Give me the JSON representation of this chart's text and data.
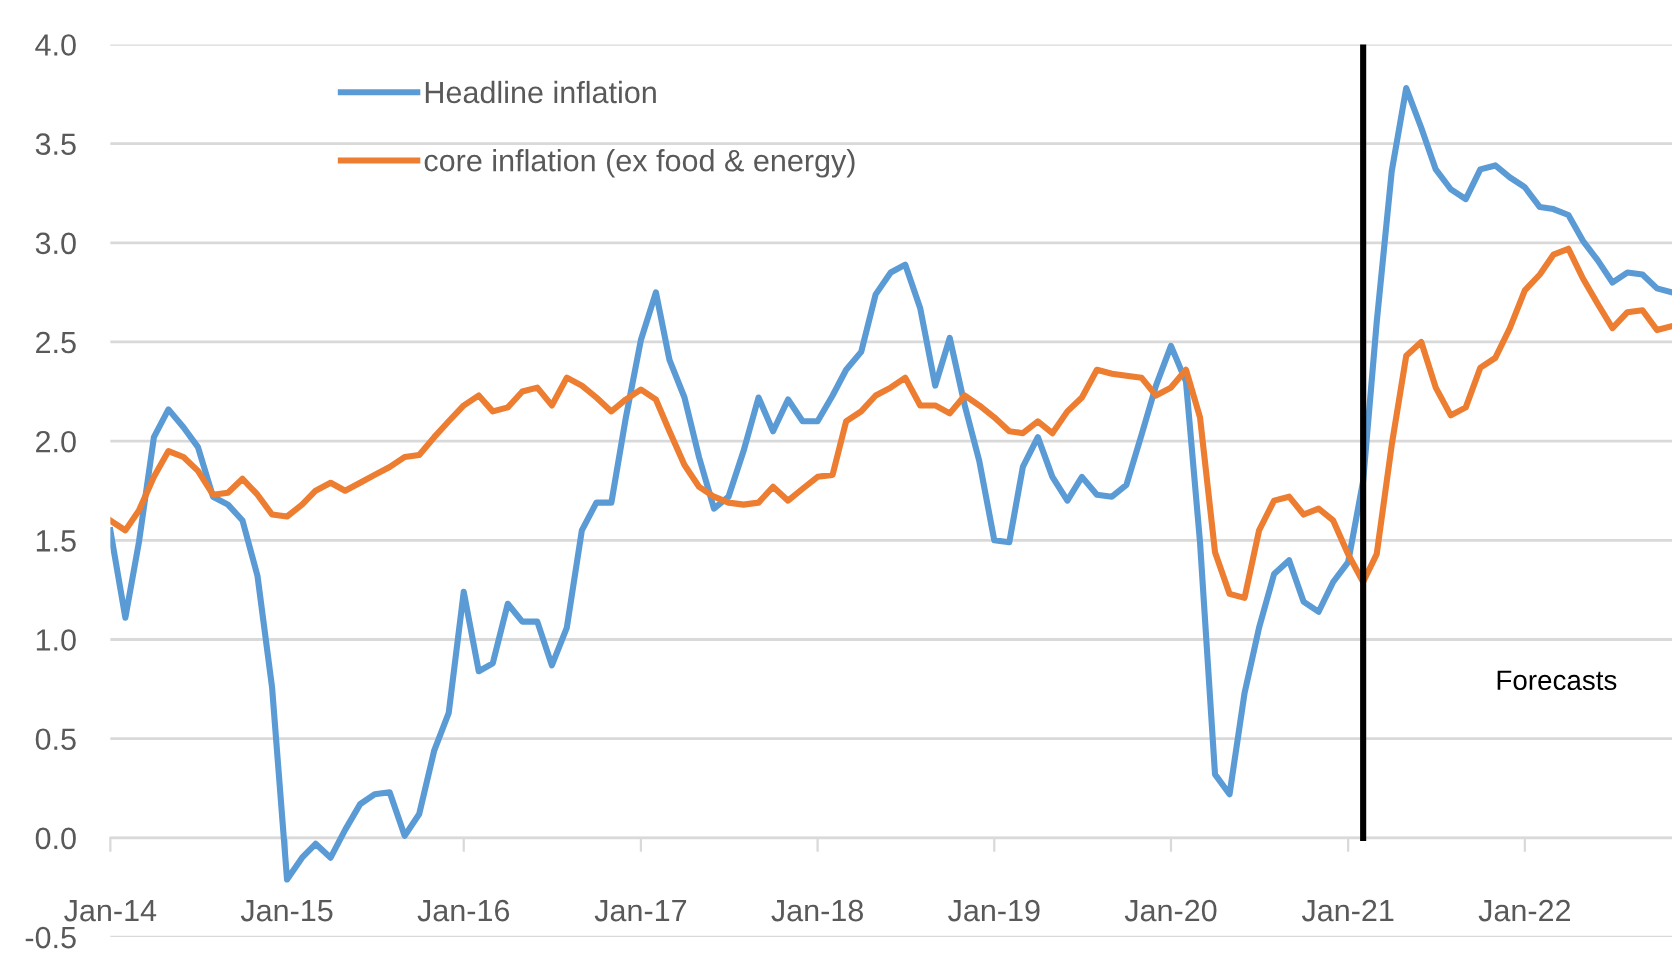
{
  "chart_data": {
    "type": "line",
    "x": [
      "2014-01",
      "2014-02",
      "2014-03",
      "2014-04",
      "2014-05",
      "2014-06",
      "2014-07",
      "2014-08",
      "2014-09",
      "2014-10",
      "2014-11",
      "2014-12",
      "2015-01",
      "2015-02",
      "2015-03",
      "2015-04",
      "2015-05",
      "2015-06",
      "2015-07",
      "2015-08",
      "2015-09",
      "2015-10",
      "2015-11",
      "2015-12",
      "2016-01",
      "2016-02",
      "2016-03",
      "2016-04",
      "2016-05",
      "2016-06",
      "2016-07",
      "2016-08",
      "2016-09",
      "2016-10",
      "2016-11",
      "2016-12",
      "2017-01",
      "2017-02",
      "2017-03",
      "2017-04",
      "2017-05",
      "2017-06",
      "2017-07",
      "2017-08",
      "2017-09",
      "2017-10",
      "2017-11",
      "2017-12",
      "2018-01",
      "2018-02",
      "2018-03",
      "2018-04",
      "2018-05",
      "2018-06",
      "2018-07",
      "2018-08",
      "2018-09",
      "2018-10",
      "2018-11",
      "2018-12",
      "2019-01",
      "2019-02",
      "2019-03",
      "2019-04",
      "2019-05",
      "2019-06",
      "2019-07",
      "2019-08",
      "2019-09",
      "2019-10",
      "2019-11",
      "2019-12",
      "2020-01",
      "2020-02",
      "2020-03",
      "2020-04",
      "2020-05",
      "2020-06",
      "2020-07",
      "2020-08",
      "2020-09",
      "2020-10",
      "2020-11",
      "2020-12",
      "2021-01",
      "2021-02",
      "2021-03",
      "2021-04",
      "2021-05",
      "2021-06",
      "2021-07",
      "2021-08",
      "2021-09",
      "2021-10",
      "2021-11",
      "2021-12",
      "2022-01",
      "2022-02",
      "2022-03",
      "2022-04",
      "2022-05",
      "2022-06",
      "2022-07",
      "2022-08",
      "2022-09",
      "2022-10",
      "2022-11"
    ],
    "series": [
      {
        "name": "Headline inflation",
        "color": "#5b9bd5",
        "values": [
          1.55,
          1.11,
          1.49,
          2.02,
          2.16,
          2.07,
          1.97,
          1.72,
          1.68,
          1.6,
          1.32,
          0.76,
          -0.21,
          -0.1,
          -0.03,
          -0.1,
          0.04,
          0.17,
          0.22,
          0.23,
          0.01,
          0.12,
          0.44,
          0.63,
          1.24,
          0.84,
          0.88,
          1.18,
          1.09,
          1.09,
          0.87,
          1.06,
          1.55,
          1.69,
          1.69,
          2.12,
          2.51,
          2.75,
          2.41,
          2.22,
          1.92,
          1.66,
          1.72,
          1.95,
          2.22,
          2.05,
          2.21,
          2.1,
          2.1,
          2.23,
          2.36,
          2.45,
          2.74,
          2.85,
          2.89,
          2.67,
          2.28,
          2.52,
          2.18,
          1.9,
          1.5,
          1.49,
          1.87,
          2.02,
          1.82,
          1.7,
          1.82,
          1.73,
          1.72,
          1.78,
          2.03,
          2.28,
          2.48,
          2.3,
          1.49,
          0.32,
          0.22,
          0.73,
          1.06,
          1.33,
          1.4,
          1.19,
          1.14,
          1.29,
          1.39,
          1.8,
          2.6,
          3.36,
          3.78,
          3.58,
          3.37,
          3.27,
          3.22,
          3.37,
          3.39,
          3.33,
          3.28,
          3.18,
          3.17,
          3.14,
          3.01,
          2.91,
          2.8,
          2.85,
          2.84,
          2.77,
          2.75
        ]
      },
      {
        "name": "core inflation (ex food & energy)",
        "color": "#ed7d31",
        "values": [
          1.6,
          1.55,
          1.65,
          1.82,
          1.95,
          1.92,
          1.85,
          1.73,
          1.74,
          1.81,
          1.73,
          1.63,
          1.62,
          1.68,
          1.75,
          1.79,
          1.75,
          1.79,
          1.83,
          1.87,
          1.92,
          1.93,
          2.02,
          2.1,
          2.18,
          2.23,
          2.15,
          2.17,
          2.25,
          2.27,
          2.18,
          2.32,
          2.28,
          2.22,
          2.15,
          2.21,
          2.26,
          2.21,
          2.05,
          1.88,
          1.77,
          1.72,
          1.69,
          1.68,
          1.69,
          1.77,
          1.7,
          1.76,
          1.82,
          1.83,
          2.1,
          2.15,
          2.23,
          2.27,
          2.32,
          2.18,
          2.18,
          2.14,
          2.23,
          2.18,
          2.12,
          2.05,
          2.04,
          2.1,
          2.04,
          2.15,
          2.22,
          2.36,
          2.34,
          2.33,
          2.32,
          2.23,
          2.27,
          2.36,
          2.12,
          1.44,
          1.23,
          1.21,
          1.55,
          1.7,
          1.72,
          1.63,
          1.66,
          1.6,
          1.43,
          1.29,
          1.43,
          1.98,
          2.43,
          2.5,
          2.27,
          2.13,
          2.17,
          2.37,
          2.42,
          2.57,
          2.76,
          2.84,
          2.94,
          2.97,
          2.82,
          2.69,
          2.57,
          2.65,
          2.66,
          2.56,
          2.58
        ]
      }
    ],
    "xlim": [
      "2014-01",
      "2022-11"
    ],
    "xticks": [
      {
        "value": "2014-01",
        "label": "Jan-14"
      },
      {
        "value": "2015-01",
        "label": "Jan-15"
      },
      {
        "value": "2016-01",
        "label": "Jan-16"
      },
      {
        "value": "2017-01",
        "label": "Jan-17"
      },
      {
        "value": "2018-01",
        "label": "Jan-18"
      },
      {
        "value": "2019-01",
        "label": "Jan-19"
      },
      {
        "value": "2020-01",
        "label": "Jan-20"
      },
      {
        "value": "2021-01",
        "label": "Jan-21"
      },
      {
        "value": "2022-01",
        "label": "Jan-22"
      }
    ],
    "ylim": [
      -0.5,
      4.0
    ],
    "yticks": [
      {
        "value": -0.5,
        "label": "-0.5"
      },
      {
        "value": 0,
        "label": "0.0"
      },
      {
        "value": 0.5,
        "label": "0.5"
      },
      {
        "value": 1,
        "label": "1.0"
      },
      {
        "value": 1.5,
        "label": "1.5"
      },
      {
        "value": 2,
        "label": "2.0"
      },
      {
        "value": 2.5,
        "label": "2.5"
      },
      {
        "value": 3,
        "label": "3.0"
      },
      {
        "value": 3.5,
        "label": "3.5"
      },
      {
        "value": 4,
        "label": "4.0"
      }
    ],
    "ref_lines": [
      {
        "axis": "x",
        "value": "2021-02",
        "color": "#000000"
      }
    ],
    "annotations": [
      "Forecasts"
    ],
    "grid": "y",
    "legend": "top left",
    "marker": "none",
    "line_style": "solid"
  }
}
